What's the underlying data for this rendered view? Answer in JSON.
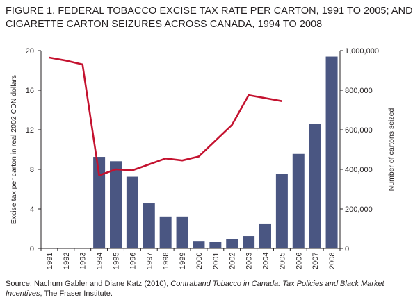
{
  "title": {
    "line1": "FIGURE 1. FEDERAL TOBACCO EXCISE TAX RATE PER CARTON, 1991 TO 2005; AND",
    "line2": "CIGARETTE CARTON SEIZURES ACROSS CANADA, 1994 TO 2008"
  },
  "source": {
    "prefix": "Source: Nachum Gabler and Diane Katz (2010), ",
    "italic": "Contraband Tobacco in Canada: Tax Policies and Black Market Incentives",
    "suffix": ", The Fraser Institute."
  },
  "colors": {
    "bars": "#4a5682",
    "line": "#c4122f",
    "axis": "#231f20"
  },
  "chart_data": {
    "type": "bar+line",
    "categories": [
      "1991",
      "1992",
      "1993",
      "1994",
      "1995",
      "1996",
      "1997",
      "1998",
      "1999",
      "2000",
      "2001",
      "2002",
      "2003",
      "2004",
      "2005",
      "2006",
      "2007",
      "2008"
    ],
    "ylabel_left": "Excise tax per carton in real 2002 CDN dollars",
    "ylabel_right": "Number of cartons seized",
    "ylim_left": [
      0,
      20
    ],
    "ylim_right": [
      0,
      1000000
    ],
    "left_ticks": [
      0,
      4,
      8,
      12,
      16,
      20
    ],
    "right_ticks": [
      0,
      200000,
      400000,
      600000,
      800000,
      1000000
    ],
    "right_tick_labels": [
      "0",
      "200,000",
      "400,000",
      "600,000",
      "800,000",
      "1,000,000"
    ],
    "bars": {
      "axis": "right",
      "values": [
        0,
        0,
        0,
        463000,
        441000,
        363000,
        228000,
        162000,
        162000,
        38000,
        32000,
        46000,
        63000,
        123000,
        377000,
        478000,
        630000,
        970000
      ]
    },
    "line": {
      "axis": "left",
      "values": [
        19.3,
        19.0,
        18.6,
        7.4,
        8.0,
        7.9,
        8.5,
        9.1,
        8.9,
        9.3,
        10.9,
        12.5,
        15.5,
        15.2,
        14.9,
        null,
        null,
        null
      ]
    }
  }
}
